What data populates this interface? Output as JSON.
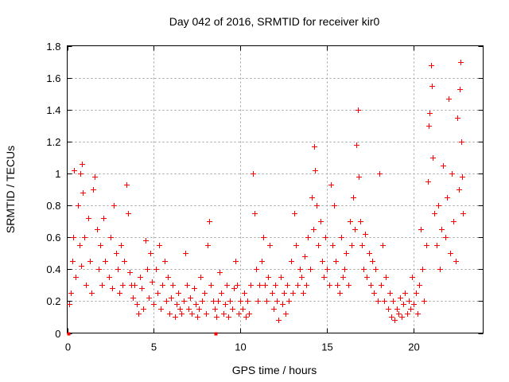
{
  "chart_data": {
    "type": "scatter",
    "title": "Day 042 of 2016, SRMTID for receiver kir0",
    "xlabel": "GPS time / hours",
    "ylabel": "SRMTID / TECUs",
    "xlim": [
      0,
      24
    ],
    "ylim": [
      0,
      1.8
    ],
    "xticks": [
      0,
      5,
      10,
      15,
      20
    ],
    "yticks": [
      0,
      0.2,
      0.4,
      0.6,
      0.8,
      1,
      1.2,
      1.4,
      1.6,
      1.8
    ],
    "x_tick_labels": [
      "0",
      "5",
      "10",
      "15",
      "20"
    ],
    "y_tick_labels": [
      "0",
      "0.2",
      "0.4",
      "0.6",
      "0.8",
      "1",
      "1.2",
      "1.4",
      "1.6",
      "1.8"
    ],
    "grid": true,
    "marker": "plus",
    "color": "#ff0000",
    "series": [
      {
        "name": "SRMTID",
        "points": [
          [
            0.05,
            0.0
          ],
          [
            8.55,
            0.0
          ],
          [
            0.1,
            0.18
          ],
          [
            0.2,
            0.25
          ],
          [
            0.3,
            0.45
          ],
          [
            0.35,
            0.6
          ],
          [
            0.4,
            1.02
          ],
          [
            0.5,
            0.35
          ],
          [
            0.6,
            0.8
          ],
          [
            0.7,
            0.55
          ],
          [
            0.75,
            1.0
          ],
          [
            0.8,
            0.42
          ],
          [
            0.85,
            1.06
          ],
          [
            0.9,
            0.88
          ],
          [
            1.0,
            0.6
          ],
          [
            1.1,
            0.3
          ],
          [
            1.2,
            0.72
          ],
          [
            1.3,
            0.45
          ],
          [
            1.4,
            0.25
          ],
          [
            1.5,
            0.9
          ],
          [
            1.6,
            0.98
          ],
          [
            1.7,
            0.65
          ],
          [
            1.8,
            0.4
          ],
          [
            1.9,
            0.55
          ],
          [
            2.0,
            0.3
          ],
          [
            2.1,
            0.72
          ],
          [
            2.2,
            0.45
          ],
          [
            2.4,
            0.35
          ],
          [
            2.5,
            0.6
          ],
          [
            2.6,
            0.28
          ],
          [
            2.7,
            0.8
          ],
          [
            2.8,
            0.5
          ],
          [
            2.9,
            0.4
          ],
          [
            3.0,
            0.25
          ],
          [
            3.1,
            0.55
          ],
          [
            3.2,
            0.3
          ],
          [
            3.3,
            0.45
          ],
          [
            3.4,
            0.93
          ],
          [
            3.5,
            0.75
          ],
          [
            3.6,
            0.38
          ],
          [
            3.7,
            0.3
          ],
          [
            3.8,
            0.22
          ],
          [
            3.9,
            0.3
          ],
          [
            4.0,
            0.18
          ],
          [
            4.1,
            0.12
          ],
          [
            4.2,
            0.35
          ],
          [
            4.3,
            0.28
          ],
          [
            4.4,
            0.15
          ],
          [
            4.5,
            0.58
          ],
          [
            4.6,
            0.4
          ],
          [
            4.7,
            0.22
          ],
          [
            4.8,
            0.5
          ],
          [
            4.9,
            0.32
          ],
          [
            5.0,
            0.18
          ],
          [
            5.1,
            0.4
          ],
          [
            5.2,
            0.25
          ],
          [
            5.3,
            0.55
          ],
          [
            5.4,
            0.15
          ],
          [
            5.5,
            0.3
          ],
          [
            5.6,
            0.45
          ],
          [
            5.7,
            0.2
          ],
          [
            5.8,
            0.35
          ],
          [
            5.9,
            0.12
          ],
          [
            6.0,
            0.22
          ],
          [
            6.1,
            0.3
          ],
          [
            6.2,
            0.1
          ],
          [
            6.3,
            0.18
          ],
          [
            6.4,
            0.25
          ],
          [
            6.5,
            0.15
          ],
          [
            6.6,
            0.12
          ],
          [
            6.7,
            0.2
          ],
          [
            6.8,
            0.5
          ],
          [
            6.9,
            0.3
          ],
          [
            7.0,
            0.15
          ],
          [
            7.1,
            0.22
          ],
          [
            7.2,
            0.12
          ],
          [
            7.3,
            0.28
          ],
          [
            7.4,
            0.18
          ],
          [
            7.5,
            0.1
          ],
          [
            7.6,
            0.15
          ],
          [
            7.7,
            0.35
          ],
          [
            7.8,
            0.2
          ],
          [
            7.9,
            0.25
          ],
          [
            8.0,
            0.12
          ],
          [
            8.1,
            0.55
          ],
          [
            8.2,
            0.7
          ],
          [
            8.3,
            0.3
          ],
          [
            8.4,
            0.2
          ],
          [
            8.5,
            0.15
          ],
          [
            8.6,
            0.1
          ],
          [
            8.7,
            0.2
          ],
          [
            8.8,
            0.38
          ],
          [
            8.9,
            0.25
          ],
          [
            9.0,
            0.12
          ],
          [
            9.1,
            0.18
          ],
          [
            9.2,
            0.3
          ],
          [
            9.3,
            0.1
          ],
          [
            9.4,
            0.2
          ],
          [
            9.5,
            0.15
          ],
          [
            9.6,
            0.28
          ],
          [
            9.7,
            0.45
          ],
          [
            9.8,
            0.3
          ],
          [
            9.9,
            0.12
          ],
          [
            10.0,
            0.2
          ],
          [
            10.1,
            0.15
          ],
          [
            10.2,
            0.25
          ],
          [
            10.3,
            0.1
          ],
          [
            10.4,
            0.2
          ],
          [
            10.5,
            0.12
          ],
          [
            10.6,
            0.3
          ],
          [
            10.7,
            1.0
          ],
          [
            10.8,
            0.75
          ],
          [
            10.9,
            0.4
          ],
          [
            11.0,
            0.2
          ],
          [
            11.1,
            0.3
          ],
          [
            11.2,
            0.45
          ],
          [
            11.3,
            0.6
          ],
          [
            11.4,
            0.3
          ],
          [
            11.5,
            0.2
          ],
          [
            11.6,
            0.35
          ],
          [
            11.7,
            0.55
          ],
          [
            11.8,
            0.25
          ],
          [
            11.9,
            0.15
          ],
          [
            12.0,
            0.3
          ],
          [
            12.1,
            0.2
          ],
          [
            12.2,
            0.08
          ],
          [
            12.3,
            0.35
          ],
          [
            12.4,
            0.18
          ],
          [
            12.5,
            0.25
          ],
          [
            12.6,
            0.12
          ],
          [
            12.7,
            0.3
          ],
          [
            12.8,
            0.2
          ],
          [
            12.9,
            0.45
          ],
          [
            13.0,
            0.25
          ],
          [
            13.1,
            0.75
          ],
          [
            13.2,
            0.55
          ],
          [
            13.3,
            0.3
          ],
          [
            13.4,
            0.4
          ],
          [
            13.5,
            0.35
          ],
          [
            13.6,
            0.25
          ],
          [
            13.7,
            0.48
          ],
          [
            13.8,
            0.3
          ],
          [
            13.9,
            0.6
          ],
          [
            14.0,
            0.4
          ],
          [
            14.1,
            0.85
          ],
          [
            14.2,
            0.65
          ],
          [
            14.25,
            1.17
          ],
          [
            14.3,
            1.02
          ],
          [
            14.4,
            0.8
          ],
          [
            14.5,
            0.55
          ],
          [
            14.6,
            0.7
          ],
          [
            14.7,
            0.45
          ],
          [
            14.8,
            0.35
          ],
          [
            14.9,
            0.6
          ],
          [
            15.0,
            0.4
          ],
          [
            15.1,
            0.3
          ],
          [
            15.2,
            0.93
          ],
          [
            15.3,
            0.55
          ],
          [
            15.4,
            0.8
          ],
          [
            15.5,
            0.45
          ],
          [
            15.6,
            0.3
          ],
          [
            15.7,
            0.25
          ],
          [
            15.8,
            0.6
          ],
          [
            15.9,
            0.35
          ],
          [
            16.0,
            0.4
          ],
          [
            16.1,
            0.5
          ],
          [
            16.2,
            0.3
          ],
          [
            16.3,
            0.7
          ],
          [
            16.4,
            0.55
          ],
          [
            16.5,
            0.85
          ],
          [
            16.6,
            0.65
          ],
          [
            16.7,
            1.18
          ],
          [
            16.75,
            1.4
          ],
          [
            16.8,
            0.98
          ],
          [
            16.9,
            0.7
          ],
          [
            17.0,
            0.55
          ],
          [
            17.1,
            0.4
          ],
          [
            17.2,
            0.62
          ],
          [
            17.3,
            0.35
          ],
          [
            17.4,
            0.5
          ],
          [
            17.5,
            0.3
          ],
          [
            17.6,
            0.45
          ],
          [
            17.7,
            0.25
          ],
          [
            17.8,
            0.4
          ],
          [
            17.9,
            0.2
          ],
          [
            18.0,
            1.0
          ],
          [
            18.1,
            0.3
          ],
          [
            18.2,
            0.55
          ],
          [
            18.3,
            0.2
          ],
          [
            18.4,
            0.35
          ],
          [
            18.5,
            0.15
          ],
          [
            18.6,
            0.25
          ],
          [
            18.7,
            0.1
          ],
          [
            18.8,
            0.2
          ],
          [
            18.9,
            0.08
          ],
          [
            19.0,
            0.15
          ],
          [
            19.1,
            0.12
          ],
          [
            19.2,
            0.22
          ],
          [
            19.3,
            0.1
          ],
          [
            19.4,
            0.18
          ],
          [
            19.5,
            0.25
          ],
          [
            19.6,
            0.12
          ],
          [
            19.7,
            0.2
          ],
          [
            19.8,
            0.15
          ],
          [
            19.9,
            0.35
          ],
          [
            20.0,
            0.18
          ],
          [
            20.1,
            0.25
          ],
          [
            20.2,
            0.12
          ],
          [
            20.3,
            0.3
          ],
          [
            20.4,
            0.65
          ],
          [
            20.5,
            0.4
          ],
          [
            20.6,
            0.2
          ],
          [
            20.7,
            0.55
          ],
          [
            20.8,
            0.95
          ],
          [
            20.85,
            1.3
          ],
          [
            20.9,
            1.38
          ],
          [
            21.0,
            1.68
          ],
          [
            21.05,
            1.55
          ],
          [
            21.1,
            1.1
          ],
          [
            21.2,
            0.75
          ],
          [
            21.3,
            0.55
          ],
          [
            21.4,
            0.8
          ],
          [
            21.5,
            0.4
          ],
          [
            21.6,
            0.65
          ],
          [
            21.7,
            1.05
          ],
          [
            21.8,
            0.6
          ],
          [
            21.9,
            0.85
          ],
          [
            22.0,
            1.47
          ],
          [
            22.1,
            0.5
          ],
          [
            22.2,
            1.0
          ],
          [
            22.3,
            0.7
          ],
          [
            22.4,
            0.45
          ],
          [
            22.5,
            1.35
          ],
          [
            22.6,
            0.9
          ],
          [
            22.65,
            1.53
          ],
          [
            22.7,
            1.7
          ],
          [
            22.75,
            1.2
          ],
          [
            22.8,
            0.98
          ],
          [
            22.85,
            0.75
          ]
        ]
      }
    ]
  }
}
